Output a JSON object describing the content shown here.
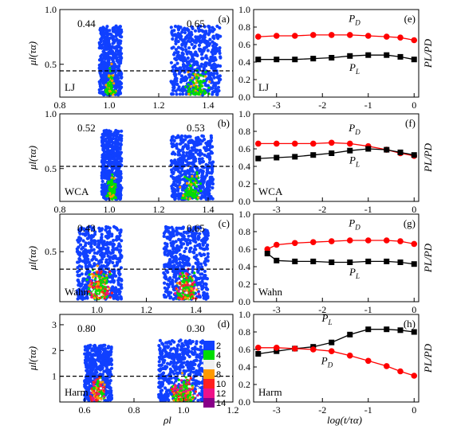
{
  "chart_data": {
    "type": "scatter",
    "figure": {
      "left_ylabel": "μl(τα)",
      "left_xlabel": "ρl",
      "right_ylabel": "PL/PD",
      "right_xlabel": "log(t/τα)"
    },
    "legend": {
      "entries": [
        "2",
        "4",
        "6",
        "8",
        "10",
        "12",
        "14"
      ],
      "colors": [
        "#1040ff",
        "#00dd00",
        "#f0f0f0",
        "#ff9900",
        "#ff2020",
        "#ee1188",
        "#880088"
      ]
    },
    "left_panels": [
      {
        "letter": "(a)",
        "system": "LJ",
        "xlim": [
          0.8,
          1.5
        ],
        "ylim": [
          0.2,
          1.0
        ],
        "xticks": [
          "0.8",
          "1.0",
          "1.2",
          "1.4"
        ],
        "xtick_values": [
          0.8,
          1.0,
          1.2,
          1.4
        ],
        "yticks": [
          "1.0",
          "0.5"
        ],
        "ytick_values": [
          1.0,
          0.5
        ],
        "threshold": 0.44,
        "left_fraction": "0.44",
        "right_fraction": "0.65",
        "clusters": [
          {
            "x": [
              0.96,
              1.05
            ],
            "y": [
              0.22,
              0.85
            ]
          },
          {
            "x": [
              1.25,
              1.45
            ],
            "y": [
              0.22,
              0.85
            ]
          }
        ]
      },
      {
        "letter": "(b)",
        "system": "WCA",
        "xlim": [
          0.8,
          1.5
        ],
        "ylim": [
          0.2,
          1.0
        ],
        "xticks": [
          "0.8",
          "1.0",
          "1.2",
          "1.4"
        ],
        "xtick_values": [
          0.8,
          1.0,
          1.2,
          1.4
        ],
        "yticks": [
          "1.0",
          "0.5"
        ],
        "ytick_values": [
          1.0,
          0.5
        ],
        "threshold": 0.52,
        "left_fraction": "0.52",
        "right_fraction": "0.53",
        "clusters": [
          {
            "x": [
              0.97,
              1.05
            ],
            "y": [
              0.22,
              0.85
            ]
          },
          {
            "x": [
              1.25,
              1.42
            ],
            "y": [
              0.22,
              0.8
            ]
          }
        ]
      },
      {
        "letter": "(c)",
        "system": "Wahn",
        "xlim": [
          0.85,
          1.55
        ],
        "ylim": [
          0.1,
          0.8
        ],
        "xticks": [
          "1.0",
          "1.2",
          "1.4"
        ],
        "xtick_values": [
          1.0,
          1.2,
          1.4
        ],
        "yticks": [
          "0.5"
        ],
        "ytick_values": [
          0.5
        ],
        "threshold": 0.36,
        "left_fraction": "0.43",
        "right_fraction": "0.65",
        "clusters": [
          {
            "x": [
              0.92,
              1.1
            ],
            "y": [
              0.12,
              0.7
            ]
          },
          {
            "x": [
              1.27,
              1.45
            ],
            "y": [
              0.12,
              0.7
            ]
          }
        ]
      },
      {
        "letter": "(d)",
        "system": "Harm",
        "xlim": [
          0.5,
          1.2
        ],
        "ylim": [
          0.0,
          3.4
        ],
        "xticks": [
          "0.6",
          "0.8",
          "1.0",
          "1.2"
        ],
        "xtick_values": [
          0.6,
          0.8,
          1.0,
          1.2
        ],
        "yticks": [
          "1",
          "2",
          "3"
        ],
        "ytick_values": [
          1,
          2,
          3
        ],
        "threshold": 1.0,
        "left_fraction": "0.80",
        "right_fraction": "0.30",
        "clusters": [
          {
            "x": [
              0.6,
              0.71
            ],
            "y": [
              0.05,
              2.2
            ]
          },
          {
            "x": [
              0.9,
              1.1
            ],
            "y": [
              0.05,
              2.4
            ]
          }
        ]
      }
    ],
    "right_panels": [
      {
        "letter": "(e)",
        "system": "LJ",
        "xlim": [
          -3.5,
          0.1
        ],
        "ylim": [
          0.0,
          1.0
        ],
        "xticks": [
          "-3",
          "-2",
          "-1",
          "0"
        ],
        "xtick_values": [
          -3,
          -2,
          -1,
          0
        ],
        "yticks": [
          "0.0",
          "0.2",
          "0.4",
          "0.6",
          "0.8",
          "1.0"
        ],
        "ytick_values": [
          0.0,
          0.2,
          0.4,
          0.6,
          0.8,
          1.0
        ],
        "x": [
          -3.4,
          -3.0,
          -2.6,
          -2.2,
          -1.8,
          -1.4,
          -1.0,
          -0.6,
          -0.3,
          0.0
        ],
        "series": [
          {
            "name": "PD",
            "marker": "circle",
            "color": "#ff0000",
            "values": [
              0.69,
              0.7,
              0.7,
              0.71,
              0.71,
              0.71,
              0.7,
              0.69,
              0.68,
              0.65
            ]
          },
          {
            "name": "PL",
            "marker": "square",
            "color": "#000000",
            "values": [
              0.43,
              0.43,
              0.43,
              0.44,
              0.45,
              0.47,
              0.48,
              0.48,
              0.46,
              0.43
            ]
          }
        ],
        "labels": [
          {
            "name": "PD",
            "x": -1.3,
            "y": 0.86
          },
          {
            "name": "PL",
            "x": -1.3,
            "y": 0.3
          }
        ]
      },
      {
        "letter": "(f)",
        "system": "WCA",
        "xlim": [
          -3.5,
          0.1
        ],
        "ylim": [
          0.0,
          1.0
        ],
        "xticks": [
          "-3",
          "-2",
          "-1",
          "0"
        ],
        "xtick_values": [
          -3,
          -2,
          -1,
          0
        ],
        "yticks": [
          "0.0",
          "0.2",
          "0.4",
          "0.6",
          "0.8",
          "1.0"
        ],
        "ytick_values": [
          0.0,
          0.2,
          0.4,
          0.6,
          0.8,
          1.0
        ],
        "x": [
          -3.4,
          -3.0,
          -2.6,
          -2.2,
          -1.8,
          -1.4,
          -1.0,
          -0.6,
          -0.3,
          0.0
        ],
        "series": [
          {
            "name": "PD",
            "marker": "circle",
            "color": "#ff0000",
            "values": [
              0.66,
              0.66,
              0.66,
              0.66,
              0.67,
              0.66,
              0.63,
              0.59,
              0.55,
              0.52
            ]
          },
          {
            "name": "PL",
            "marker": "square",
            "color": "#000000",
            "values": [
              0.49,
              0.5,
              0.51,
              0.53,
              0.55,
              0.58,
              0.6,
              0.59,
              0.56,
              0.53
            ]
          }
        ],
        "labels": [
          {
            "name": "PD",
            "x": -1.3,
            "y": 0.8
          },
          {
            "name": "PL",
            "x": -1.3,
            "y": 0.43
          }
        ]
      },
      {
        "letter": "(g)",
        "system": "Wahn",
        "xlim": [
          -3.5,
          0.1
        ],
        "ylim": [
          0.0,
          1.0
        ],
        "xticks": [
          "-3",
          "-2",
          "-1",
          "0"
        ],
        "xtick_values": [
          -3,
          -2,
          -1,
          0
        ],
        "yticks": [
          "0.0",
          "0.2",
          "0.4",
          "0.6",
          "0.8",
          "1.0"
        ],
        "ytick_values": [
          0.0,
          0.2,
          0.4,
          0.6,
          0.8,
          1.0
        ],
        "x": [
          -3.2,
          -3.0,
          -2.6,
          -2.2,
          -1.8,
          -1.4,
          -1.0,
          -0.6,
          -0.3,
          0.0
        ],
        "series": [
          {
            "name": "PD",
            "marker": "circle",
            "color": "#ff0000",
            "values": [
              0.6,
              0.65,
              0.67,
              0.68,
              0.69,
              0.7,
              0.7,
              0.7,
              0.69,
              0.66
            ]
          },
          {
            "name": "PL",
            "marker": "square",
            "color": "#000000",
            "values": [
              0.55,
              0.47,
              0.46,
              0.46,
              0.45,
              0.45,
              0.46,
              0.46,
              0.45,
              0.43
            ]
          }
        ],
        "labels": [
          {
            "name": "PD",
            "x": -1.3,
            "y": 0.86
          },
          {
            "name": "PL",
            "x": -1.3,
            "y": 0.3
          }
        ]
      },
      {
        "letter": "(h)",
        "system": "Harm",
        "xlim": [
          -3.5,
          0.1
        ],
        "ylim": [
          0.0,
          1.0
        ],
        "xticks": [
          "-3",
          "-2",
          "-1",
          "0"
        ],
        "xtick_values": [
          -3,
          -2,
          -1,
          0
        ],
        "yticks": [
          "0.0",
          "0.2",
          "0.4",
          "0.6",
          "0.8",
          "1.0"
        ],
        "ytick_values": [
          0.0,
          0.2,
          0.4,
          0.6,
          0.8,
          1.0
        ],
        "x": [
          -3.4,
          -3.0,
          -2.6,
          -2.2,
          -1.8,
          -1.4,
          -1.0,
          -0.6,
          -0.3,
          0.0
        ],
        "series": [
          {
            "name": "PL",
            "marker": "square",
            "color": "#000000",
            "values": [
              0.55,
              0.58,
              0.61,
              0.63,
              0.68,
              0.77,
              0.83,
              0.83,
              0.82,
              0.8
            ]
          },
          {
            "name": "PD",
            "marker": "circle",
            "color": "#ff0000",
            "values": [
              0.62,
              0.62,
              0.61,
              0.6,
              0.58,
              0.53,
              0.47,
              0.41,
              0.35,
              0.3
            ]
          }
        ],
        "labels": [
          {
            "name": "PL",
            "x": -1.9,
            "y": 0.92
          },
          {
            "name": "PD",
            "x": -1.9,
            "y": 0.43
          }
        ]
      }
    ]
  }
}
